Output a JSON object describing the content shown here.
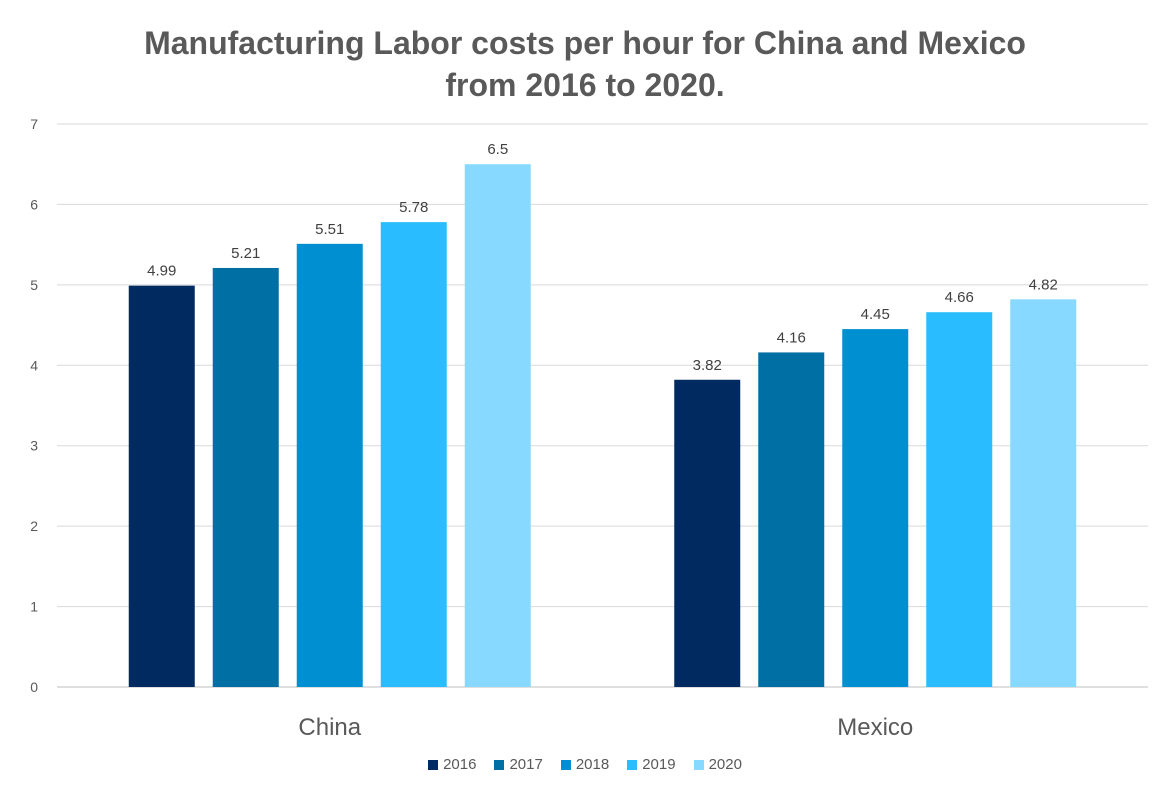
{
  "chart_data": {
    "type": "bar",
    "title_line1": "Manufacturing Labor costs per hour for China and Mexico",
    "title_line2": "from 2016 to 2020.",
    "categories": [
      "China",
      "Mexico"
    ],
    "series": [
      {
        "name": "2016",
        "values": [
          4.99,
          3.82
        ],
        "color": "#002A60"
      },
      {
        "name": "2017",
        "values": [
          5.21,
          4.16
        ],
        "color": "#006FA3"
      },
      {
        "name": "2018",
        "values": [
          5.51,
          4.45
        ],
        "color": "#008FD1"
      },
      {
        "name": "2019",
        "values": [
          5.78,
          4.66
        ],
        "color": "#29BDFF"
      },
      {
        "name": "2020",
        "values": [
          6.5,
          4.82
        ],
        "color": "#87D9FF"
      }
    ],
    "ylim": [
      0,
      7
    ],
    "yticks": [
      0,
      1,
      2,
      3,
      4,
      5,
      6,
      7
    ],
    "grid": true,
    "legend": "bottom",
    "xlabel": "",
    "ylabel": ""
  }
}
